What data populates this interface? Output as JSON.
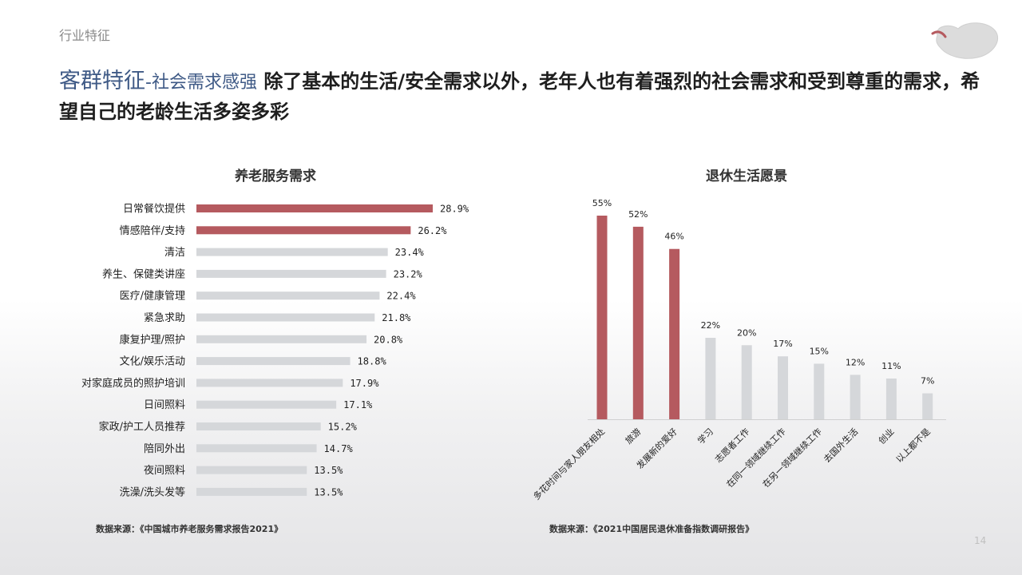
{
  "header": {
    "section": "行业特征",
    "title_main": "客群特征",
    "title_sub": "-社会需求感强",
    "title_text": "除了基本的生活/安全需求以外，老年人也有着强烈的社会需求和受到尊重的需求，希望自己的老龄生活多姿多彩"
  },
  "colors": {
    "highlight": "#b55a5f",
    "normal": "#d5d7da",
    "accent_text": "#3f5a86"
  },
  "chart_data": [
    {
      "type": "bar",
      "orientation": "horizontal",
      "title": "养老服务需求",
      "categories": [
        "日常餐饮提供",
        "情感陪伴/支持",
        "清洁",
        "养生、保健类讲座",
        "医疗/健康管理",
        "紧急求助",
        "康复护理/照护",
        "文化/娱乐活动",
        "对家庭成员的照护培训",
        "日间照料",
        "家政/护工人员推荐",
        "陪同外出",
        "夜间照料",
        "洗澡/洗头发等"
      ],
      "values": [
        28.9,
        26.2,
        23.4,
        23.2,
        22.4,
        21.8,
        20.8,
        18.8,
        17.9,
        17.1,
        15.2,
        14.7,
        13.5,
        13.5
      ],
      "value_labels": [
        "28.9%",
        "26.2%",
        "23.4%",
        "23.2%",
        "22.4%",
        "21.8%",
        "20.8%",
        "18.8%",
        "17.9%",
        "17.1%",
        "15.2%",
        "14.7%",
        "13.5%",
        "13.5%"
      ],
      "highlight": [
        true,
        true,
        false,
        false,
        false,
        false,
        false,
        false,
        false,
        false,
        false,
        false,
        false,
        false
      ],
      "xlim": [
        0,
        30
      ],
      "source": "数据来源：《中国城市养老服务需求报告2021》"
    },
    {
      "type": "bar",
      "orientation": "vertical",
      "title": "退休生活愿景",
      "categories": [
        "多花时间与家人朋友相处",
        "旅游",
        "发展新的爱好",
        "学习",
        "志愿者工作",
        "在同一领域继续工作",
        "在另一领域继续工作",
        "去国外生活",
        "创业",
        "以上都不是"
      ],
      "values": [
        55,
        52,
        46,
        22,
        20,
        17,
        15,
        12,
        11,
        7
      ],
      "value_labels": [
        "55%",
        "52%",
        "46%",
        "22%",
        "20%",
        "17%",
        "15%",
        "12%",
        "11%",
        "7%"
      ],
      "highlight": [
        true,
        true,
        true,
        false,
        false,
        false,
        false,
        false,
        false,
        false
      ],
      "ylim": [
        0,
        55
      ],
      "source": "数据来源：《2021中国居民退休准备指数调研报告》"
    }
  ],
  "footer": {
    "page_number": "14"
  }
}
